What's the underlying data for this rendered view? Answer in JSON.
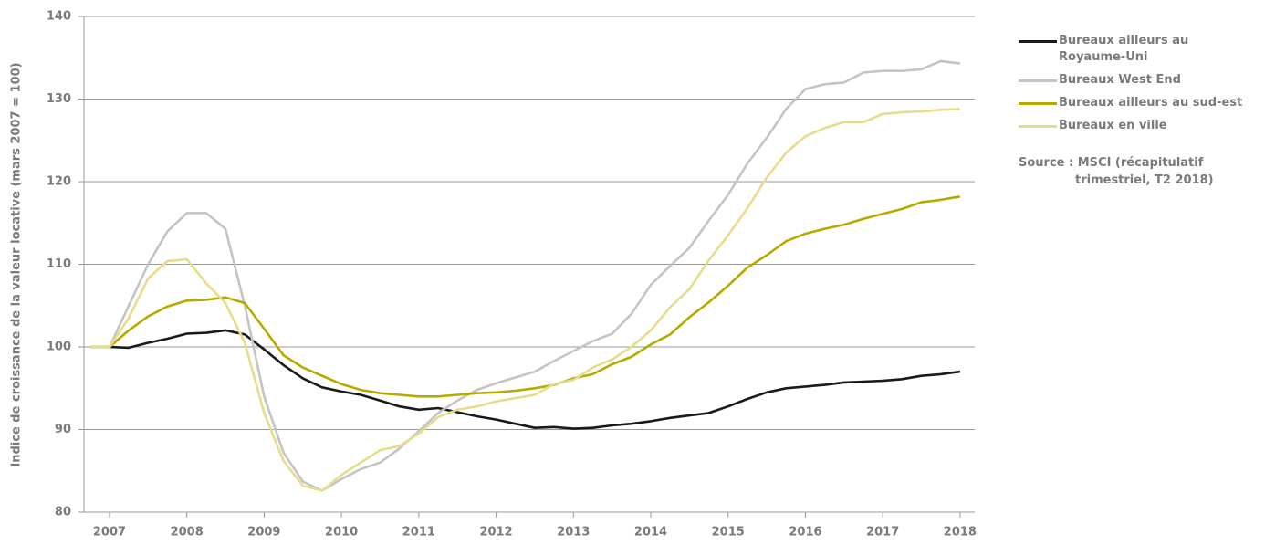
{
  "chart_data": {
    "type": "line",
    "y_label": "Indice de croissance de la valeur locative (mars 2007 = 100)",
    "x": [
      2006.75,
      2007,
      2007.25,
      2007.5,
      2007.75,
      2008,
      2008.25,
      2008.5,
      2008.75,
      2009,
      2009.25,
      2009.5,
      2009.75,
      2010,
      2010.25,
      2010.5,
      2010.75,
      2011,
      2011.25,
      2011.5,
      2011.75,
      2012,
      2012.25,
      2012.5,
      2012.75,
      2013,
      2013.25,
      2013.5,
      2013.75,
      2014,
      2014.25,
      2014.5,
      2014.75,
      2015,
      2015.25,
      2015.5,
      2015.75,
      2016,
      2016.25,
      2016.5,
      2016.75,
      2017,
      2017.25,
      2017.5,
      2017.75,
      2018
    ],
    "series": [
      {
        "name": "Bureaux ailleurs au Royaume-Uni",
        "color": "#1a1a1a",
        "values": [
          100,
          100,
          99.9,
          100.5,
          101,
          101.6,
          101.7,
          102,
          101.5,
          99.7,
          97.8,
          96.2,
          95.1,
          94.6,
          94.2,
          93.5,
          92.8,
          92.4,
          92.6,
          92.1,
          91.6,
          91.2,
          90.7,
          90.2,
          90.3,
          90.1,
          90.2,
          90.5,
          90.7,
          91,
          91.4,
          91.7,
          92,
          92.8,
          93.7,
          94.5,
          95,
          95.2,
          95.4,
          95.7,
          95.8,
          95.9,
          96.1,
          96.5,
          96.7,
          97
        ]
      },
      {
        "name": "Bureaux West End",
        "color": "#c4c4c4",
        "values": [
          100,
          100,
          105,
          110,
          114,
          116.2,
          116.2,
          114.3,
          105,
          94,
          87.2,
          83.7,
          82.6,
          84,
          85.2,
          86,
          87.7,
          89.8,
          92,
          93.5,
          94.8,
          95.6,
          96.3,
          97,
          98.3,
          99.5,
          100.7,
          101.6,
          104,
          107.5,
          109.8,
          112,
          115.3,
          118.4,
          122.2,
          125.3,
          128.8,
          131.2,
          131.8,
          132,
          133.2,
          133.4,
          133.4,
          133.6,
          134.6,
          134.3
        ]
      },
      {
        "name": "Bureaux ailleurs au sud-est",
        "color": "#b5ab00",
        "values": [
          100,
          100,
          102,
          103.7,
          104.9,
          105.6,
          105.7,
          106,
          105.3,
          102.2,
          99,
          97.5,
          96.5,
          95.5,
          94.8,
          94.4,
          94.2,
          94,
          94,
          94.2,
          94.4,
          94.5,
          94.7,
          95,
          95.4,
          96.2,
          96.7,
          97.9,
          98.8,
          100.3,
          101.5,
          103.6,
          105.4,
          107.4,
          109.6,
          111.1,
          112.8,
          113.7,
          114.3,
          114.8,
          115.5,
          116.1,
          116.7,
          117.5,
          117.8,
          118.2
        ]
      },
      {
        "name": "Bureaux en ville",
        "color": "#e8dc8c",
        "values": [
          100,
          100,
          103.5,
          108.3,
          110.4,
          110.6,
          107.7,
          105.3,
          100.5,
          92,
          86.2,
          83.2,
          82.6,
          84.5,
          86,
          87.5,
          88,
          89.5,
          91.5,
          92.4,
          92.8,
          93.4,
          93.8,
          94.2,
          95.5,
          96,
          97.5,
          98.5,
          100,
          102,
          104.8,
          107,
          110.5,
          113.5,
          116.8,
          120.5,
          123.5,
          125.5,
          126.5,
          127.2,
          127.2,
          128.2,
          128.4,
          128.5,
          128.7,
          128.8
        ]
      }
    ],
    "xlim": [
      2006.67,
      2018.19
    ],
    "xticks": [
      2007,
      2008,
      2009,
      2010,
      2011,
      2012,
      2013,
      2014,
      2015,
      2016,
      2017,
      2018
    ],
    "ylim": [
      80,
      140
    ],
    "yticks": [
      80,
      90,
      100,
      110,
      120,
      130,
      140
    ],
    "grid": true,
    "source": "Source : MSCI (récapitulatif trimestriel, T2 2018)"
  }
}
